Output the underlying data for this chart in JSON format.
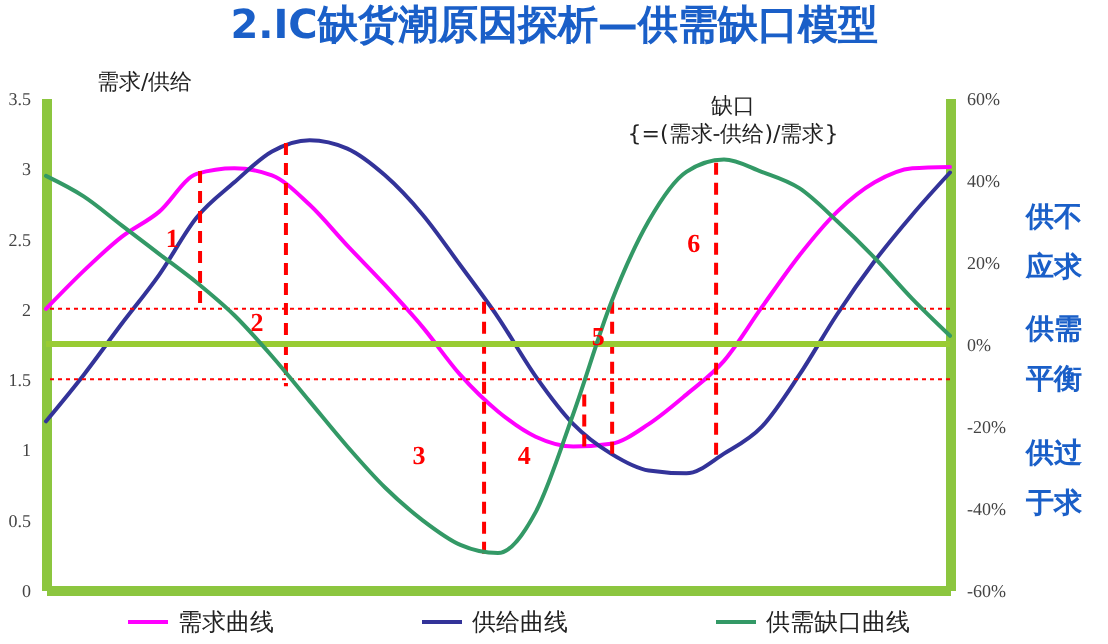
{
  "chart_data": {
    "type": "line",
    "title": "2.IC缺货潮原因探析—供需缺口模型",
    "ylabel": "需求/供给",
    "y2label": "缺口 {=(需求-供给)/需求}",
    "categories": [
      null,
      null,
      null,
      null,
      null,
      null,
      null,
      null,
      null,
      null,
      null,
      null,
      null,
      null,
      null,
      null,
      null,
      null,
      null,
      null,
      null,
      null,
      null,
      null,
      null
    ],
    "series": [
      {
        "name": "需求曲线",
        "color": "#ff00ff",
        "values": [
          2.0,
          2.27,
          2.51,
          2.69,
          2.96,
          3.0,
          2.95,
          2.74,
          2.45,
          2.17,
          1.87,
          1.53,
          1.27,
          1.09,
          1.02,
          1.04,
          1.18,
          1.39,
          1.63,
          2.01,
          2.38,
          2.69,
          2.9,
          3.0,
          3.01
        ]
      },
      {
        "name": "供给曲线",
        "color": "#333399",
        "values": [
          1.2,
          1.53,
          1.89,
          2.24,
          2.65,
          2.9,
          3.12,
          3.2,
          3.14,
          2.95,
          2.67,
          2.31,
          1.94,
          1.52,
          1.18,
          0.97,
          0.85,
          0.83,
          0.97,
          1.16,
          1.53,
          1.96,
          2.34,
          2.67,
          2.97
        ]
      },
      {
        "name": "供需缺口曲线",
        "color": "#339966",
        "axis": "y2",
        "values": [
          41,
          36,
          29,
          22,
          15,
          7,
          -3,
          -14,
          -25,
          -35,
          -43,
          -49,
          -51,
          -41,
          -17,
          10,
          30,
          42,
          45,
          42,
          38,
          30,
          21,
          11,
          2
        ]
      }
    ],
    "ylim": [
      0,
      3.5
    ],
    "yticks": [
      0,
      0.5,
      1,
      1.5,
      2,
      2.5,
      3,
      3.5
    ],
    "y2lim": [
      -60,
      60
    ],
    "y2ticks": [
      {
        "value": -60,
        "label": "-60%"
      },
      {
        "value": -40,
        "label": "-40%"
      },
      {
        "value": -20,
        "label": "-20%"
      },
      {
        "value": 0,
        "label": "0%"
      },
      {
        "value": 20,
        "label": "20%"
      },
      {
        "value": 40,
        "label": "40%"
      },
      {
        "value": 60,
        "label": "60%"
      }
    ],
    "ref_lines": [
      {
        "axis": "y",
        "value": 2,
        "color": "#ff0000",
        "line_style": "dotted"
      },
      {
        "axis": "y",
        "value": 1.5,
        "color": "#ff0000",
        "line_style": "dotted"
      },
      {
        "axis": "y2",
        "value": 0,
        "color": "#99cc33",
        "line_style": "solid"
      }
    ],
    "annotations": [
      "1",
      "2",
      "3",
      "4",
      "5",
      "6",
      "供不应求",
      "供需平衡",
      "供过于求"
    ],
    "legend": "bottom",
    "grid": false,
    "line_style": "solid"
  }
}
